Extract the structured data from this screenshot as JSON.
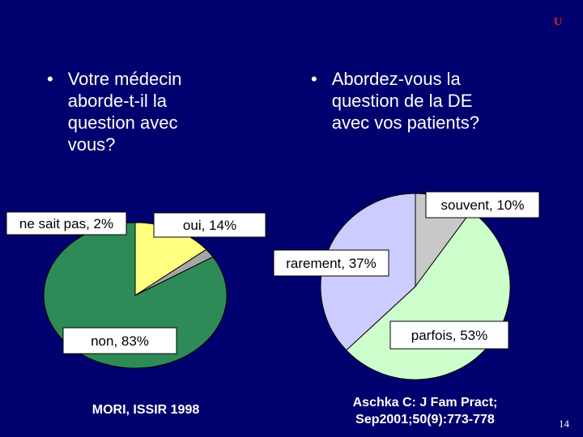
{
  "slide": {
    "corner_mark": "U",
    "page_number": "14"
  },
  "left_panel": {
    "question": "Votre médecin aborde-t-il la question avec vous?",
    "bullet": "•",
    "source": "MORI, ISSIR 1998"
  },
  "right_panel": {
    "question": "Abordez-vous la question de la DE avec vos patients?",
    "bullet": "•",
    "source_line1": "Aschka C: J Fam Pract;",
    "source_line2": "Sep2001;50(9):773-778"
  },
  "chart_data": [
    {
      "type": "pie",
      "slices": [
        {
          "label": "ne sait pas, 2%",
          "value": 2,
          "color": "#a6a6a6"
        },
        {
          "label": "oui, 14%",
          "value": 14,
          "color": "#ffff80"
        },
        {
          "label": "non, 83%",
          "value": 83,
          "color": "#2e8b57"
        }
      ]
    },
    {
      "type": "pie",
      "slices": [
        {
          "label": "souvent, 10%",
          "value": 10,
          "color": "#c8c8c8"
        },
        {
          "label": "parfois, 53%",
          "value": 53,
          "color": "#ccffcc"
        },
        {
          "label": "rarement, 37%",
          "value": 37,
          "color": "#ccccff"
        }
      ]
    }
  ]
}
